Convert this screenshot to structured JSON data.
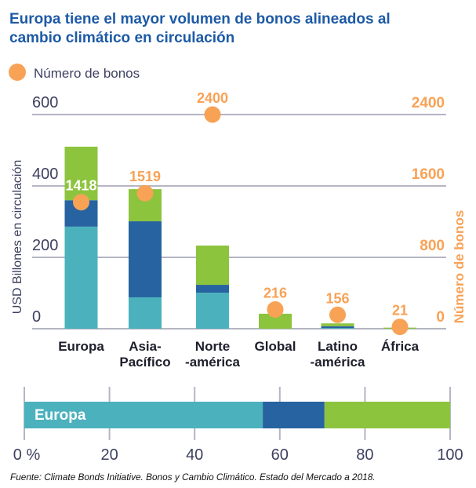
{
  "title": {
    "lines": [
      "Europa tiene el mayor volumen de bonos alineados al",
      "cambio climático en circulación"
    ]
  },
  "legend": {
    "items": [
      {
        "label": "Número de bonos",
        "marker": "circle-icon",
        "color": "#f8a256"
      }
    ]
  },
  "colors": {
    "title": "#1d5aa6",
    "teal": "#4bb2bd",
    "dark_blue": "#2763a0",
    "green": "#8cc43e",
    "orange": "#f8a256",
    "gridline": "#b5b6c3",
    "axis_text": "#3d4060",
    "category_text": "#1e1e2c"
  },
  "footnote": "Fuente: Climate Bonds Initiative. Bonos y Cambio Climático. Estado del Mercado a 2018.",
  "chart_data": [
    {
      "type": "bar",
      "stacked": true,
      "title": "Europa tiene el mayor volumen de bonos alineados al cambio climático en circulación",
      "categories": [
        "Europa",
        "Asia-Pacífico",
        "Norte-américa",
        "Global",
        "Latinoamérica",
        "África"
      ],
      "category_label_lines": [
        [
          "Europa"
        ],
        [
          "Asia-",
          "Pacífico"
        ],
        [
          "Norte",
          "-américa"
        ],
        [
          "Global"
        ],
        [
          "Latino",
          "-américa"
        ],
        [
          "África"
        ]
      ],
      "xlabel": "",
      "ylabel": "USD Billones en circulación",
      "ylim": [
        0,
        600
      ],
      "yticks": [
        0,
        200,
        400,
        600
      ],
      "ytick_labels": [
        "0",
        "200",
        "400",
        "600"
      ],
      "grid": true,
      "series": [
        {
          "name": "teal",
          "color": "#4bb2bd",
          "values": [
            286,
            88,
            101,
            0,
            2,
            0
          ]
        },
        {
          "name": "dark-blue",
          "color": "#2763a0",
          "values": [
            74,
            213,
            22,
            0,
            5,
            0
          ]
        },
        {
          "name": "green",
          "color": "#8cc43e",
          "values": [
            150,
            90,
            110,
            42,
            8,
            3
          ]
        }
      ],
      "secondary": {
        "type": "scatter",
        "name": "Número de bonos",
        "axis": "right",
        "ylabel": "Número de bonos",
        "ylim": [
          0,
          2400
        ],
        "yticks": [
          0,
          800,
          1600,
          2400
        ],
        "ytick_labels": [
          "0",
          "800",
          "1600",
          "2400"
        ],
        "color": "#f8a256",
        "values": [
          1418,
          1519,
          2400,
          216,
          156,
          21
        ],
        "data_labels": [
          "1418",
          "1519",
          "2400",
          "216",
          "156",
          "21"
        ],
        "data_label_colors": [
          "#ffffff",
          "#f8a256",
          "#f8a256",
          "#f8a256",
          "#f8a256",
          "#f8a256"
        ]
      },
      "legend": {
        "entries": [
          "Número de bonos"
        ],
        "position": "top-left"
      }
    },
    {
      "type": "bar",
      "orientation": "horizontal",
      "stacked": true,
      "categories": [
        "Europa"
      ],
      "bar_label": "Europa",
      "series": [
        {
          "name": "teal",
          "color": "#4bb2bd",
          "values": [
            56
          ]
        },
        {
          "name": "dark-blue",
          "color": "#2763a0",
          "values": [
            14.5
          ]
        },
        {
          "name": "green",
          "color": "#8cc43e",
          "values": [
            29.5
          ]
        }
      ],
      "xlim": [
        0,
        100
      ],
      "xticks": [
        0,
        20,
        40,
        60,
        80,
        100
      ],
      "xtick_labels": [
        "0 %",
        "20",
        "40",
        "60",
        "80",
        "100"
      ],
      "grid": true
    }
  ]
}
